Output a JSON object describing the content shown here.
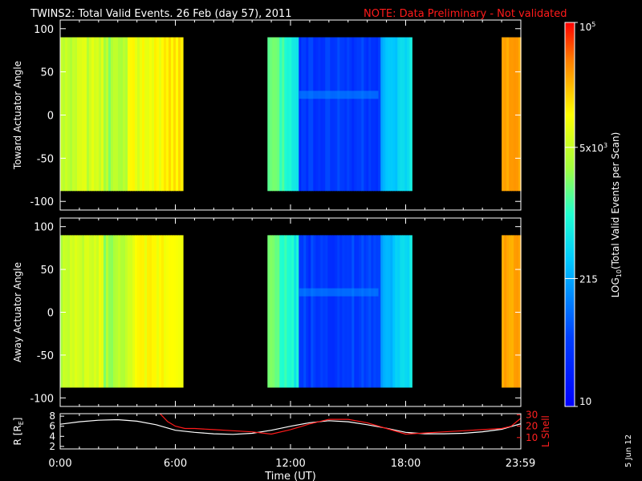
{
  "header": {
    "title": "TWINS2: Total Valid Events. 26 Feb (day  57), 2011",
    "note": "NOTE: Data Preliminary - Not validated",
    "note_color": "#ff1a1a"
  },
  "stamp": "5 Jun 12",
  "chart_data": [
    {
      "type": "heatmap",
      "panel": "toward",
      "ylabel": "Toward Actuator Angle",
      "x_range_hours": [
        0,
        24
      ],
      "ylim": [
        -110,
        110
      ],
      "y_ticks": [
        100,
        50,
        0,
        -50,
        -100
      ],
      "data_y_range": [
        -88,
        90
      ],
      "segments": [
        {
          "start": 0.0,
          "end": 6.3,
          "level": "high",
          "log_counts_mean": 3.6
        },
        {
          "start": 10.8,
          "end": 18.3,
          "level": "mixed",
          "log_counts_mean": 1.9
        },
        {
          "start": 23.0,
          "end": 24.0,
          "level": "very-high",
          "log_counts_mean": 4.1
        }
      ]
    },
    {
      "type": "heatmap",
      "panel": "away",
      "ylabel": "Away Actuator Angle",
      "x_range_hours": [
        0,
        24
      ],
      "ylim": [
        -110,
        110
      ],
      "y_ticks": [
        100,
        50,
        0,
        -50,
        -100
      ],
      "data_y_range": [
        -88,
        90
      ],
      "segments": [
        {
          "start": 0.0,
          "end": 6.3,
          "level": "high",
          "log_counts_mean": 3.4
        },
        {
          "start": 10.8,
          "end": 18.3,
          "level": "mixed",
          "log_counts_mean": 1.8
        },
        {
          "start": 23.0,
          "end": 24.0,
          "level": "very-high",
          "log_counts_mean": 4.0
        }
      ]
    },
    {
      "type": "line",
      "panel": "orbit",
      "xlabel": "Time (UT)",
      "x_tick_labels": [
        "0:00",
        "6:00",
        "12:00",
        "18:00",
        "23:59"
      ],
      "x_tick_hours": [
        0,
        6,
        12,
        18,
        23.98
      ],
      "ylabel_left": "R [R",
      "ylabel_left_sub": "E",
      "ylabel_right": "L Shell",
      "ylim_left": [
        1.5,
        8.5
      ],
      "y_ticks_left": [
        8,
        6,
        4,
        2
      ],
      "ylim_right": [
        0,
        31
      ],
      "y_ticks_right": [
        30,
        20,
        10
      ],
      "series": [
        {
          "axis": "left",
          "color": "#ffffff",
          "x": [
            0,
            1,
            2,
            3,
            4,
            5,
            6,
            7,
            8,
            9,
            10,
            11,
            12,
            13,
            14,
            15,
            16,
            17,
            18,
            19,
            20,
            21,
            22,
            23,
            24
          ],
          "y": [
            6.4,
            6.9,
            7.2,
            7.3,
            7.0,
            6.3,
            5.2,
            4.8,
            4.5,
            4.4,
            4.6,
            5.2,
            6.0,
            6.7,
            7.1,
            6.9,
            6.3,
            5.6,
            4.8,
            4.5,
            4.5,
            4.6,
            4.9,
            5.4,
            6.5
          ]
        },
        {
          "axis": "right",
          "color": "#ff1a1a",
          "x": [
            5.2,
            5.6,
            6.0,
            6.5,
            7.0,
            8.0,
            9.0,
            10.0,
            11.0,
            12.0,
            13.0,
            14.0,
            15.0,
            16.0,
            17.0,
            18.0,
            19.0,
            20.0,
            21.0,
            22.0,
            23.0,
            23.5,
            24.0
          ],
          "y": [
            31,
            24,
            20,
            18,
            18,
            17,
            16,
            15,
            13,
            17,
            22,
            26,
            26,
            23,
            18,
            13,
            14,
            15,
            16,
            17,
            18,
            20,
            27
          ]
        }
      ]
    }
  ],
  "colorbar": {
    "label_main": "LOG",
    "label_sub": "10",
    "label_rest": "(Total Valid Events per Scan)",
    "scale": "log",
    "range": [
      10,
      100000
    ],
    "ticks": [
      {
        "value": 100000,
        "base": "10",
        "exp": "5"
      },
      {
        "value": 5000,
        "base": "5x10",
        "exp": "3"
      },
      {
        "value": 215,
        "base": "215",
        "exp": ""
      },
      {
        "value": 10,
        "base": "10",
        "exp": ""
      }
    ]
  }
}
